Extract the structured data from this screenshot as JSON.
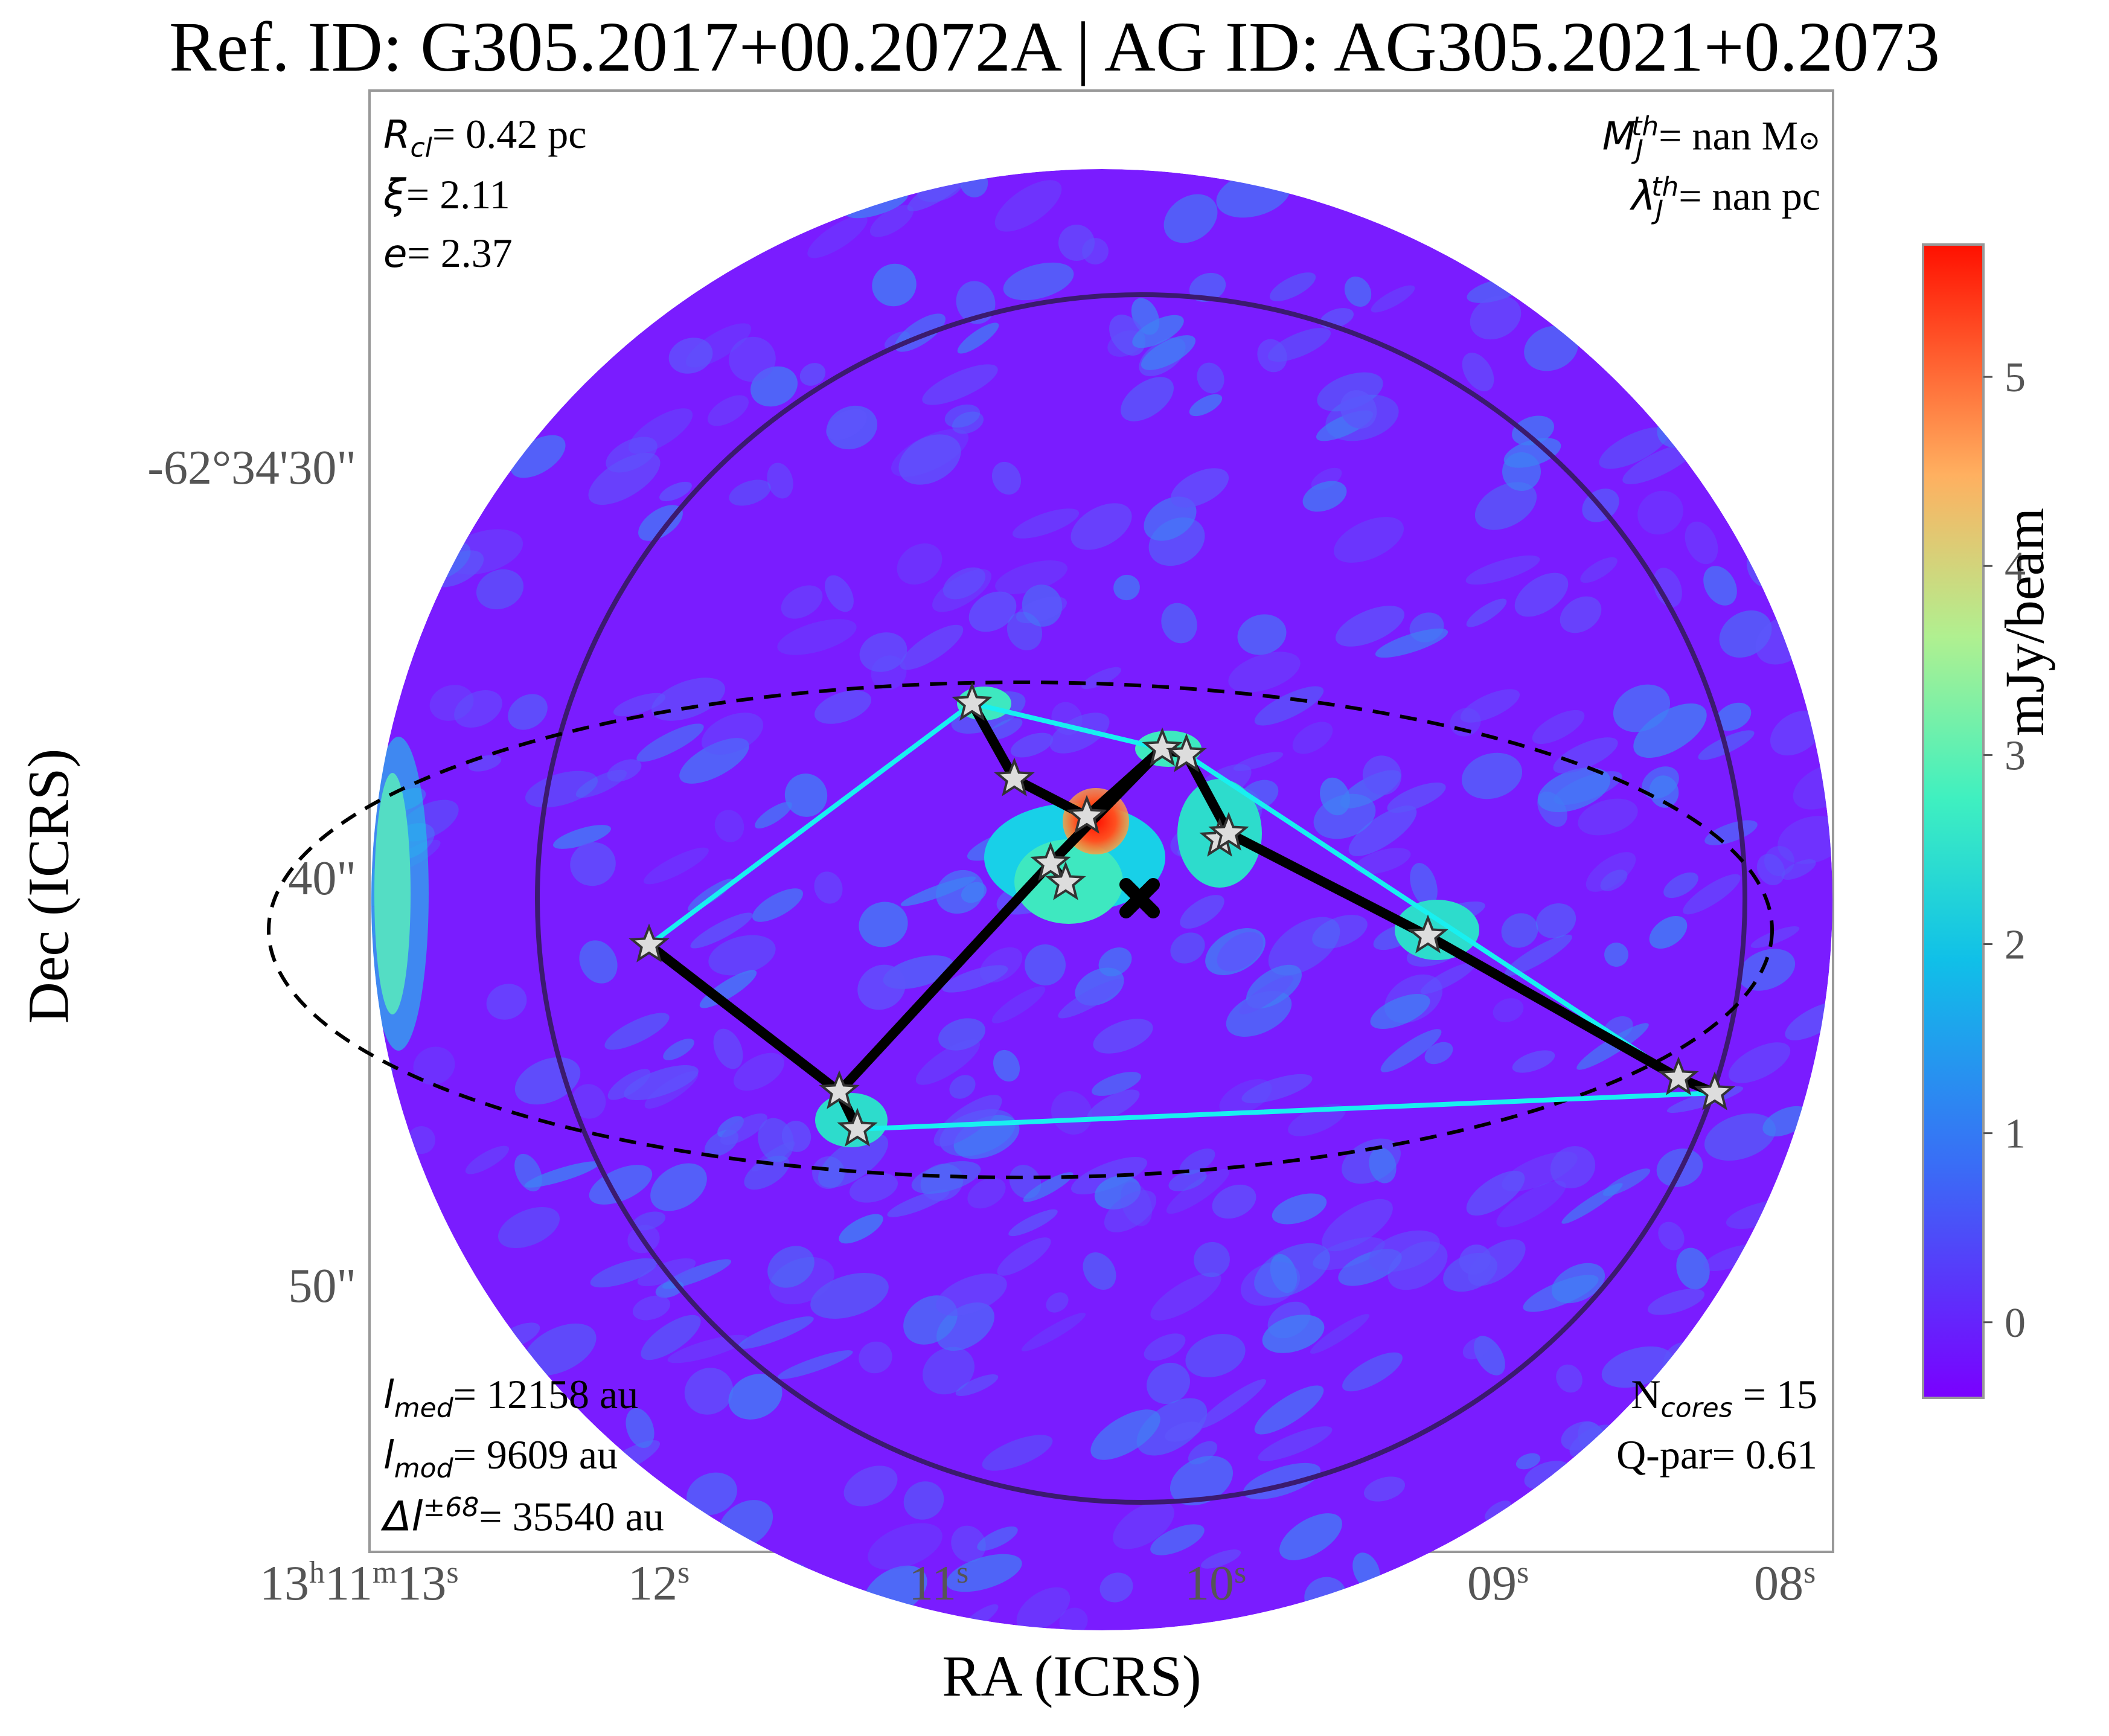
{
  "title": "Ref. ID: G305.2017+00.2072A | AG ID: AG305.2021+0.2073",
  "axes": {
    "xlabel": "RA (ICRS)",
    "ylabel": "Dec (ICRS)",
    "xticks": [
      {
        "h": "13",
        "m": "11",
        "s": "13",
        "full": true
      },
      {
        "s": "12"
      },
      {
        "s": "11"
      },
      {
        "s": "10"
      },
      {
        "s": "09"
      },
      {
        "s": "08"
      }
    ],
    "yticks": [
      "-62°34'30\"",
      "40\"",
      "50\""
    ],
    "h_unit": "h",
    "m_unit": "m",
    "s_unit": "s"
  },
  "annotations": {
    "r_cl_value": "= 0.42 pc",
    "xi_value": "= 2.11",
    "e_value": "= 2.37",
    "mj_value": "= nan M",
    "lambda_value": "= nan pc",
    "lmed_value": "= 12158 au",
    "lmod_value": "= 9609 au",
    "dl_value": "= 35540 au",
    "ncores_value": " = 15",
    "qpar": "Q-par= 0.61"
  },
  "colorbar": {
    "label": "mJy/beam",
    "ticks": [
      "0",
      "1",
      "2",
      "3",
      "4",
      "5"
    ],
    "min": -0.4,
    "max": 5.7,
    "colormap": "rainbow"
  },
  "map": {
    "background_color": "#7a1cff",
    "circle_color": "#3b1a6e",
    "mst_color": "#000000",
    "hull_color": "#18f0f0",
    "ellipse_color": "#000000",
    "star_color": "#dddddd"
  },
  "cores": [
    {
      "ra": "13h11m10.9s",
      "dec": "-62°34'37.2\""
    },
    {
      "ra": "13h11m10.75s",
      "dec": "-62°34'38.4\""
    },
    {
      "ra": "13h11m10.45s",
      "dec": "-62°34'39.1\""
    },
    {
      "ra": "13h11m10.6s",
      "dec": "-62°34'40.0\""
    },
    {
      "ra": "13h11m10.55s",
      "dec": "-62°34'40.4\""
    },
    {
      "ra": "13h11m10.25s",
      "dec": "-62°34'37.9\""
    },
    {
      "ra": "13h11m10.15s",
      "dec": "-62°34'38.0\""
    },
    {
      "ra": "13h11m10.05s",
      "dec": "-62°34'39.5\""
    },
    {
      "ra": "13h11m10.0s",
      "dec": "-62°34'39.4\""
    },
    {
      "ra": "13h11m09.3s",
      "dec": "-62°34'41.4\""
    },
    {
      "ra": "13h11m08.4s",
      "dec": "-62°34'42.9\""
    },
    {
      "ra": "13h11m08.3s",
      "dec": "-62°34'43.1\""
    },
    {
      "ra": "13h11m12.05s",
      "dec": "-62°34'41.7\""
    },
    {
      "ra": "13h11m11.35s",
      "dec": "-62°34'43.4\""
    },
    {
      "ra": "13h11m11.3s",
      "dec": "-62°34'44.0\""
    }
  ]
}
